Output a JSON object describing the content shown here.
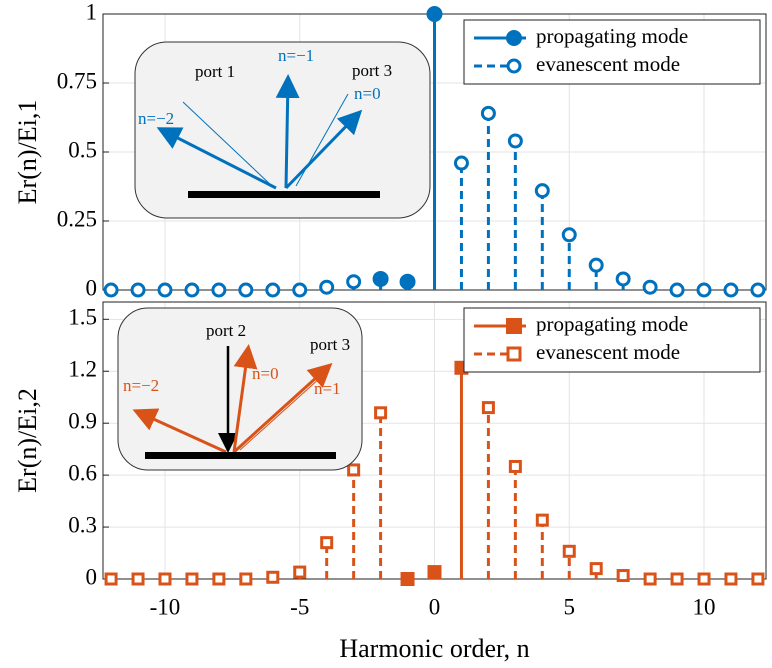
{
  "chart_data": [
    {
      "type": "stem",
      "y_label": "Er(n)/Ei,1",
      "xlim": [
        -12.3,
        12.3
      ],
      "xticks": [
        -10,
        -5,
        0,
        5,
        10
      ],
      "ylim": [
        0,
        1
      ],
      "yticks": [
        0,
        0.25,
        0.5,
        0.75,
        1
      ],
      "grid": true,
      "legend": "upper right",
      "annotations": [
        "port 1",
        "n=−1",
        "port 3",
        "n=0",
        "n=−2"
      ],
      "series": [
        {
          "name": "propagating mode",
          "color": "#0072bd",
          "marker": "circle",
          "filled": true,
          "linestyle": "solid",
          "x": [
            -2,
            -1,
            0
          ],
          "values": [
            0.04,
            0.03,
            1
          ]
        },
        {
          "name": "evanescent mode",
          "color": "#0072bd",
          "marker": "circle",
          "filled": false,
          "linestyle": "dashed",
          "x": [
            -12,
            -11,
            -10,
            -9,
            -8,
            -7,
            -6,
            -5,
            -4,
            -3,
            1,
            2,
            3,
            4,
            5,
            6,
            7,
            8,
            9,
            10,
            11,
            12
          ],
          "values": [
            0,
            0,
            0,
            0,
            0,
            0,
            0,
            0,
            0.01,
            0.03,
            0.46,
            0.64,
            0.54,
            0.36,
            0.2,
            0.09,
            0.04,
            0.01,
            0,
            0,
            0,
            0
          ]
        }
      ]
    },
    {
      "type": "stem",
      "x_label": "Harmonic order, n",
      "y_label": "Er(n)/Ei,2",
      "xlim": [
        -12.3,
        12.3
      ],
      "xticks": [
        -10,
        -5,
        0,
        5,
        10
      ],
      "ylim": [
        0,
        1.6
      ],
      "yticks": [
        0,
        0.3,
        0.6,
        0.9,
        1.2,
        1.5
      ],
      "grid": true,
      "legend": "upper right",
      "annotations": [
        "port 2",
        "n=0",
        "port 3",
        "n=1",
        "n=−2"
      ],
      "series": [
        {
          "name": "propagating mode",
          "color": "#d95319",
          "marker": "square",
          "filled": true,
          "linestyle": "solid",
          "x": [
            -1,
            0,
            1
          ],
          "values": [
            0,
            0.04,
            1.22
          ]
        },
        {
          "name": "evanescent mode",
          "color": "#d95319",
          "marker": "square",
          "filled": false,
          "linestyle": "dashed",
          "x": [
            -12,
            -11,
            -10,
            -9,
            -8,
            -7,
            -6,
            -5,
            -4,
            -3,
            -2,
            2,
            3,
            4,
            5,
            6,
            7,
            8,
            9,
            10,
            11,
            12
          ],
          "values": [
            0,
            0,
            0,
            0,
            0,
            0,
            0.01,
            0.04,
            0.21,
            0.63,
            0.96,
            0.99,
            0.65,
            0.34,
            0.16,
            0.06,
            0.02,
            0,
            0,
            0,
            0,
            0
          ]
        }
      ]
    }
  ]
}
